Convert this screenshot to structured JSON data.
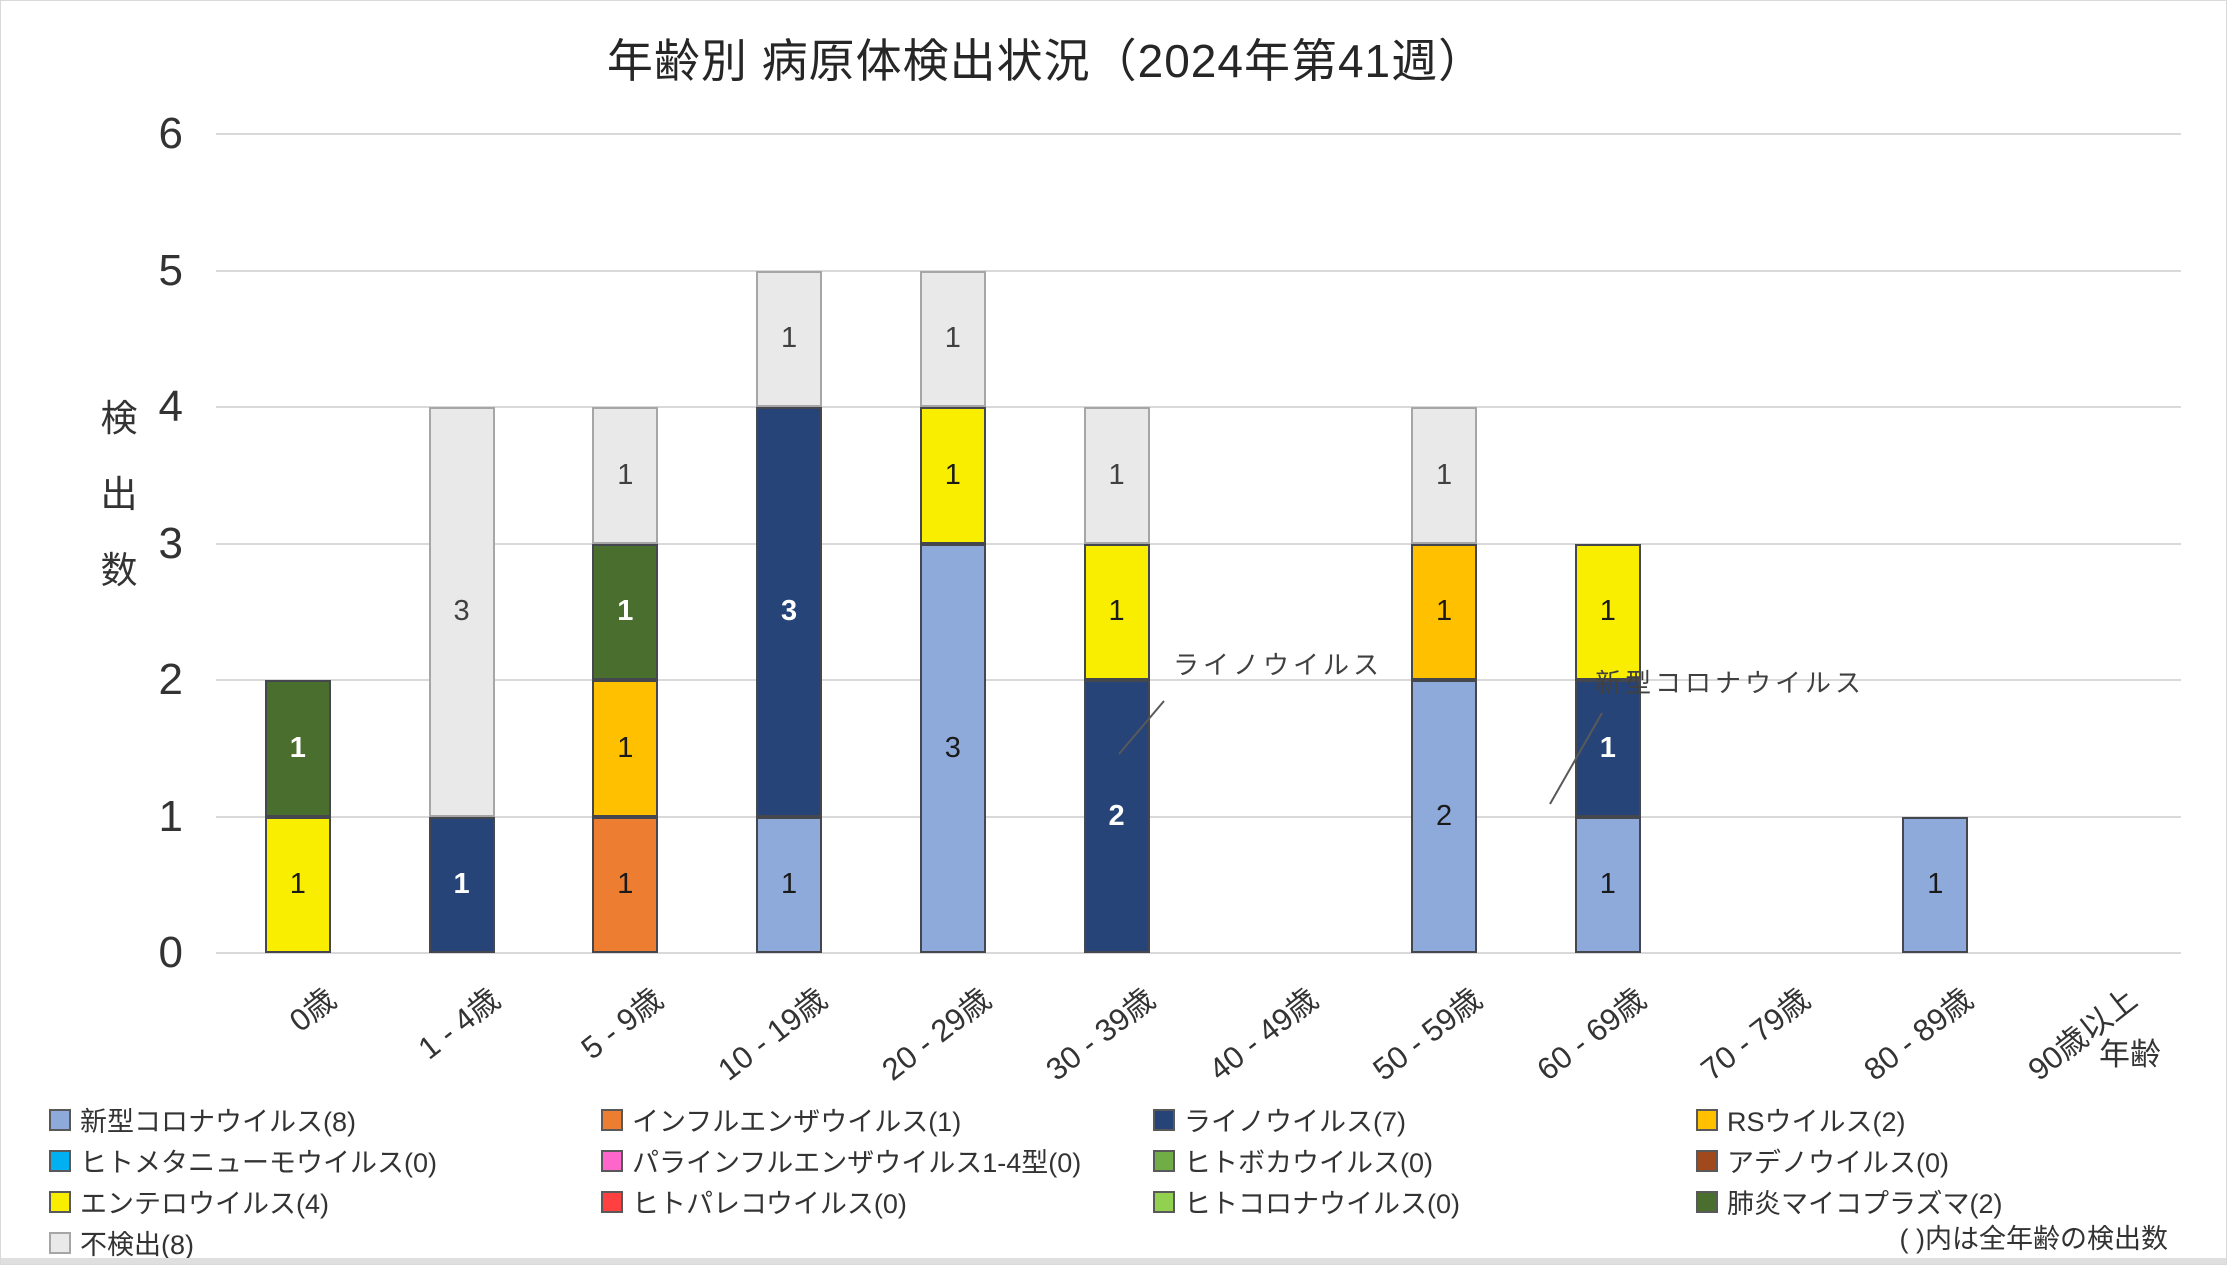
{
  "page": {
    "footnote": "( )内は全年齢の検出数"
  },
  "chart_data": {
    "type": "bar",
    "stacked": true,
    "title": "年齢別 病原体検出状況（2024年第41週）",
    "xlabel": "年齢",
    "ylabel": "検出数",
    "ylim": [
      0,
      6
    ],
    "yticks": [
      0,
      1,
      2,
      3,
      4,
      5,
      6
    ],
    "grid": true,
    "legend_position": "bottom",
    "categories": [
      "0歳",
      "1 - 4歳",
      "5 - 9歳",
      "10 - 19歳",
      "20 - 29歳",
      "30 - 39歳",
      "40 - 49歳",
      "50 - 59歳",
      "60 - 69歳",
      "70 - 79歳",
      "80 - 89歳",
      "90歳以上"
    ],
    "series": [
      {
        "name": "新型コロナウイルス",
        "total": 8,
        "color": "#8EAADB",
        "text": "#1A1A1A",
        "values": [
          0,
          0,
          0,
          1,
          3,
          0,
          0,
          2,
          1,
          0,
          1,
          0
        ]
      },
      {
        "name": "インフルエンザウイルス",
        "total": 1,
        "color": "#ED7D31",
        "text": "#1A1A1A",
        "values": [
          0,
          0,
          1,
          0,
          0,
          0,
          0,
          0,
          0,
          0,
          0,
          0
        ]
      },
      {
        "name": "ライノウイルス",
        "total": 7,
        "color": "#264478",
        "text": "#FFFFFF",
        "values": [
          0,
          1,
          0,
          3,
          0,
          2,
          0,
          0,
          1,
          0,
          0,
          0
        ]
      },
      {
        "name": "RSウイルス",
        "total": 2,
        "color": "#FFC000",
        "text": "#1A1A1A",
        "values": [
          0,
          0,
          1,
          0,
          0,
          0,
          0,
          1,
          0,
          0,
          0,
          0
        ]
      },
      {
        "name": "ヒトメタニューモウイルス",
        "total": 0,
        "color": "#00B0F0",
        "text": "#1A1A1A",
        "values": [
          0,
          0,
          0,
          0,
          0,
          0,
          0,
          0,
          0,
          0,
          0,
          0
        ]
      },
      {
        "name": "パラインフルエンザウイルス1-4型",
        "total": 0,
        "color": "#FF66CC",
        "text": "#1A1A1A",
        "values": [
          0,
          0,
          0,
          0,
          0,
          0,
          0,
          0,
          0,
          0,
          0,
          0
        ]
      },
      {
        "name": "ヒトボカウイルス",
        "total": 0,
        "color": "#70AD47",
        "text": "#1A1A1A",
        "values": [
          0,
          0,
          0,
          0,
          0,
          0,
          0,
          0,
          0,
          0,
          0,
          0
        ]
      },
      {
        "name": "アデノウイルス",
        "total": 0,
        "color": "#A0491C",
        "text": "#1A1A1A",
        "values": [
          0,
          0,
          0,
          0,
          0,
          0,
          0,
          0,
          0,
          0,
          0,
          0
        ]
      },
      {
        "name": "エンテロウイルス",
        "total": 4,
        "color": "#FAEE00",
        "text": "#1A1A1A",
        "values": [
          1,
          0,
          0,
          0,
          1,
          1,
          0,
          0,
          1,
          0,
          0,
          0
        ]
      },
      {
        "name": "ヒトパレコウイルス",
        "total": 0,
        "color": "#FF4040",
        "text": "#1A1A1A",
        "values": [
          0,
          0,
          0,
          0,
          0,
          0,
          0,
          0,
          0,
          0,
          0,
          0
        ]
      },
      {
        "name": "ヒトコロナウイルス",
        "total": 0,
        "color": "#92D050",
        "text": "#1A1A1A",
        "values": [
          0,
          0,
          0,
          0,
          0,
          0,
          0,
          0,
          0,
          0,
          0,
          0
        ]
      },
      {
        "name": "肺炎マイコプラズマ",
        "total": 2,
        "color": "#4A6E2E",
        "text": "#FFFFFF",
        "values": [
          1,
          0,
          1,
          0,
          0,
          0,
          0,
          0,
          0,
          0,
          0,
          0
        ]
      },
      {
        "name": "不検出",
        "total": 8,
        "color": "#E9E9E9",
        "text": "#404040",
        "border": "#A6A6A6",
        "values": [
          0,
          3,
          1,
          1,
          1,
          1,
          0,
          1,
          0,
          0,
          0,
          0
        ]
      }
    ],
    "annotations": [
      {
        "text": "ライノウイルス",
        "target_category": "30 - 39歳",
        "target_series": "ライノウイルス"
      },
      {
        "text": "新型コロナウイルス",
        "target_category": "60 - 69歳",
        "target_series": "新型コロナウイルス"
      }
    ]
  },
  "legend": {
    "items": [
      {
        "label": "新型コロナウイルス(8)",
        "color": "#8EAADB"
      },
      {
        "label": "インフルエンザウイルス(1)",
        "color": "#ED7D31"
      },
      {
        "label": "ライノウイルス(7)",
        "color": "#264478"
      },
      {
        "label": "RSウイルス(2)",
        "color": "#FFC000"
      },
      {
        "label": "ヒトメタニューモウイルス(0)",
        "color": "#00B0F0"
      },
      {
        "label": "パラインフルエンザウイルス1-4型(0)",
        "color": "#FF66CC"
      },
      {
        "label": "ヒトボカウイルス(0)",
        "color": "#70AD47"
      },
      {
        "label": "アデノウイルス(0)",
        "color": "#A0491C"
      },
      {
        "label": "エンテロウイルス(4)",
        "color": "#FAEE00"
      },
      {
        "label": "ヒトパレコウイルス(0)",
        "color": "#FF4040"
      },
      {
        "label": "ヒトコロナウイルス(0)",
        "color": "#92D050"
      },
      {
        "label": "肺炎マイコプラズマ(2)",
        "color": "#4A6E2E"
      },
      {
        "label": "不検出(8)",
        "color": "#E9E9E9",
        "border": "#A6A6A6"
      }
    ]
  }
}
